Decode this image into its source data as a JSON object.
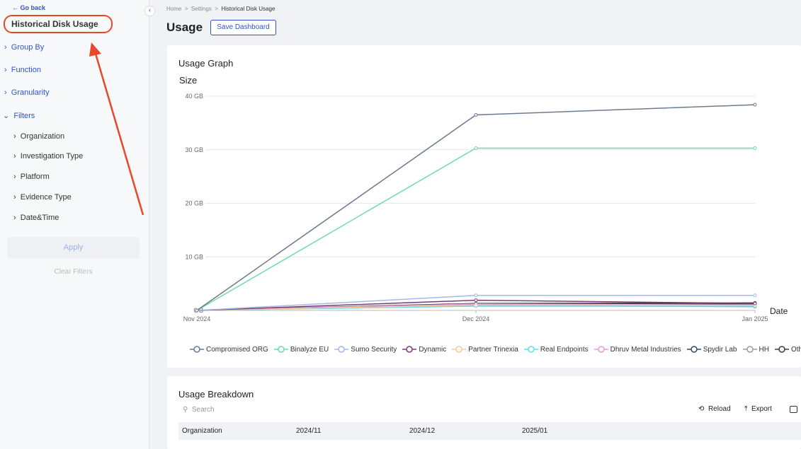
{
  "sidebar": {
    "back": "Go back",
    "title": "Historical Disk Usage",
    "menu": [
      "Group By",
      "Function",
      "Granularity",
      "Filters"
    ],
    "filters": [
      "Organization",
      "Investigation Type",
      "Platform",
      "Evidence Type",
      "Date&Time"
    ],
    "apply": "Apply",
    "clear": "Clear Filters"
  },
  "breadcrumb": [
    "Home",
    "Settings",
    "Historical Disk Usage"
  ],
  "page_title": "Usage",
  "save_button": "Save Dashboard",
  "chart_data": {
    "type": "line",
    "title": "Usage Graph",
    "y_label": "Size",
    "x_label": "Date",
    "categories": [
      "Nov 2024",
      "Dec 2024",
      "Jan 2025"
    ],
    "ylim": [
      0,
      40
    ],
    "yticks": [
      {
        "value": 0,
        "label": "0 B"
      },
      {
        "value": 10,
        "label": "10 GB"
      },
      {
        "value": 20,
        "label": "20 GB"
      },
      {
        "value": 30,
        "label": "30 GB"
      },
      {
        "value": 40,
        "label": "40 GB"
      }
    ],
    "grid": true,
    "series": [
      {
        "name": "Compromised ORG",
        "color": "#6b7a90",
        "values": [
          0,
          36.5,
          38.4
        ]
      },
      {
        "name": "Binalyze EU",
        "color": "#6ddbaa",
        "values": [
          0,
          30.3,
          30.3
        ]
      },
      {
        "name": "Sumo Security",
        "color": "#a6b8e8",
        "values": [
          0,
          2.8,
          2.8
        ]
      },
      {
        "name": "Dynamic",
        "color": "#7b3a7a",
        "values": [
          0,
          1.9,
          1.3
        ]
      },
      {
        "name": "Partner Trinexia",
        "color": "#f5c89a",
        "values": [
          0,
          1.0,
          1.0
        ]
      },
      {
        "name": "Real Endpoints",
        "color": "#5fe0e8",
        "values": [
          0,
          0.8,
          0.8
        ]
      },
      {
        "name": "Dhruv Metal Industries",
        "color": "#e79ad8",
        "values": [
          0,
          1.2,
          1.0
        ]
      },
      {
        "name": "Spydir Lab",
        "color": "#2d4a6b",
        "values": [
          0,
          1.1,
          1.2
        ]
      },
      {
        "name": "HH",
        "color": "#9a9a9a",
        "values": [
          0,
          0.9,
          0.7
        ]
      },
      {
        "name": "Others",
        "color": "#333d4a",
        "values": [
          0,
          1.3,
          1.4
        ]
      }
    ]
  },
  "breakdown": {
    "title": "Usage Breakdown",
    "search": "Search",
    "actions": [
      "Reload",
      "Export"
    ],
    "columns": [
      "Organization",
      "2024/11",
      "2024/12",
      "2025/01"
    ]
  }
}
